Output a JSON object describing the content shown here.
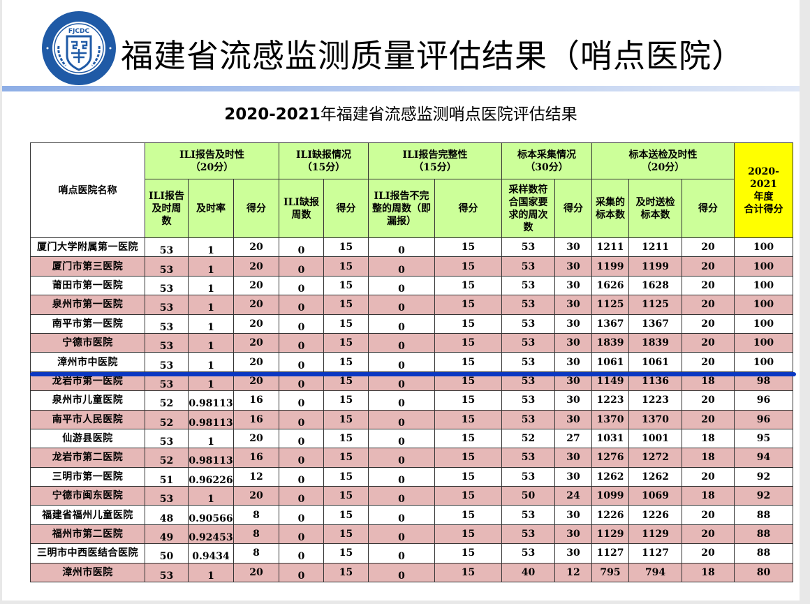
{
  "header": {
    "logo_text": "FJCDC",
    "logo_ring_text": "福建省疾病预防控制中心",
    "title": "福建省流感监测质量评估结果（哨点医院）",
    "subtitle_year": "2020-2021",
    "subtitle_text": "年福建省流感监测哨点医院评估结果"
  },
  "colors": {
    "header_green": "#ccff99",
    "total_yellow": "#ffff00",
    "row_pink": "#e6b8b7",
    "highlight_blue": "#0a37c2",
    "logo_blue": "#1f5aa6"
  },
  "table": {
    "name_header": "哨点医院名称",
    "groups": [
      {
        "label": "ILI报告及时性",
        "points": "（20分）"
      },
      {
        "label": "ILI缺报情况",
        "points": "（15分）"
      },
      {
        "label": "ILI报告完整性",
        "points": "（15分）"
      },
      {
        "label": "标本采集情况",
        "points": "（30分）"
      },
      {
        "label": "标本送检及时性",
        "points": "（20分）"
      }
    ],
    "total_header": {
      "line1": "2020-2021",
      "line2": "年度",
      "line3": "合计得分"
    },
    "sub_headers": [
      "ILI报告及时周数",
      "及时率",
      "得分",
      "ILI缺报周数",
      "得分",
      "ILI报告不完整的周数（即漏报）",
      "得分",
      "采样数符合国家要求的周次数",
      "得分",
      "采集的标本数",
      "及时送检标本数",
      "得分"
    ],
    "rows": [
      {
        "name": "厦门大学附属第一医院",
        "v": [
          "53",
          "1",
          "20",
          "0",
          "15",
          "0",
          "15",
          "53",
          "30",
          "1211",
          "1211",
          "20",
          "100"
        ]
      },
      {
        "name": "厦门市第三医院",
        "v": [
          "53",
          "1",
          "20",
          "0",
          "15",
          "0",
          "15",
          "53",
          "30",
          "1199",
          "1199",
          "20",
          "100"
        ]
      },
      {
        "name": "莆田市第一医院",
        "v": [
          "53",
          "1",
          "20",
          "0",
          "15",
          "0",
          "15",
          "53",
          "30",
          "1626",
          "1628",
          "20",
          "100"
        ]
      },
      {
        "name": "泉州市第一医院",
        "v": [
          "53",
          "1",
          "20",
          "0",
          "15",
          "0",
          "15",
          "53",
          "30",
          "1125",
          "1125",
          "20",
          "100"
        ]
      },
      {
        "name": "南平市第一医院",
        "v": [
          "53",
          "1",
          "20",
          "0",
          "15",
          "0",
          "15",
          "53",
          "30",
          "1367",
          "1367",
          "20",
          "100"
        ]
      },
      {
        "name": "宁德市医院",
        "v": [
          "53",
          "1",
          "20",
          "0",
          "15",
          "0",
          "15",
          "53",
          "30",
          "1839",
          "1839",
          "20",
          "100"
        ]
      },
      {
        "name": "漳州市中医院",
        "v": [
          "53",
          "1",
          "20",
          "0",
          "15",
          "0",
          "15",
          "53",
          "30",
          "1061",
          "1061",
          "20",
          "100"
        ]
      },
      {
        "name": "龙岩市第一医院",
        "v": [
          "53",
          "1",
          "20",
          "0",
          "15",
          "0",
          "15",
          "53",
          "30",
          "1149",
          "1136",
          "18",
          "98"
        ]
      },
      {
        "name": "泉州市儿童医院",
        "v": [
          "52",
          "0.98113",
          "16",
          "0",
          "15",
          "0",
          "15",
          "53",
          "30",
          "1223",
          "1223",
          "20",
          "96"
        ]
      },
      {
        "name": "南平市人民医院",
        "v": [
          "52",
          "0.98113",
          "16",
          "0",
          "15",
          "0",
          "15",
          "53",
          "30",
          "1370",
          "1370",
          "20",
          "96"
        ]
      },
      {
        "name": "仙游县医院",
        "v": [
          "53",
          "1",
          "20",
          "0",
          "15",
          "0",
          "15",
          "52",
          "27",
          "1031",
          "1001",
          "18",
          "95"
        ]
      },
      {
        "name": "龙岩市第二医院",
        "v": [
          "52",
          "0.98113",
          "16",
          "0",
          "15",
          "0",
          "15",
          "53",
          "30",
          "1276",
          "1272",
          "18",
          "94"
        ]
      },
      {
        "name": "三明市第一医院",
        "v": [
          "51",
          "0.96226",
          "12",
          "0",
          "15",
          "0",
          "15",
          "53",
          "30",
          "1262",
          "1262",
          "20",
          "92"
        ]
      },
      {
        "name": "宁德市闽东医院",
        "v": [
          "53",
          "1",
          "20",
          "0",
          "15",
          "0",
          "15",
          "50",
          "24",
          "1099",
          "1069",
          "18",
          "92"
        ]
      },
      {
        "name": "福建省福州儿童医院",
        "v": [
          "48",
          "0.90566",
          "8",
          "0",
          "15",
          "0",
          "15",
          "53",
          "30",
          "1226",
          "1226",
          "20",
          "88"
        ]
      },
      {
        "name": "福州市第二医院",
        "v": [
          "49",
          "0.92453",
          "8",
          "0",
          "15",
          "0",
          "15",
          "53",
          "30",
          "1129",
          "1129",
          "20",
          "88"
        ]
      },
      {
        "name": "三明市中西医结合医院",
        "v": [
          "50",
          "0.9434",
          "8",
          "0",
          "15",
          "0",
          "15",
          "53",
          "30",
          "1127",
          "1127",
          "20",
          "88"
        ]
      },
      {
        "name": "漳州市医院",
        "v": [
          "53",
          "1",
          "20",
          "0",
          "15",
          "0",
          "15",
          "40",
          "12",
          "795",
          "794",
          "18",
          "80"
        ]
      }
    ]
  }
}
